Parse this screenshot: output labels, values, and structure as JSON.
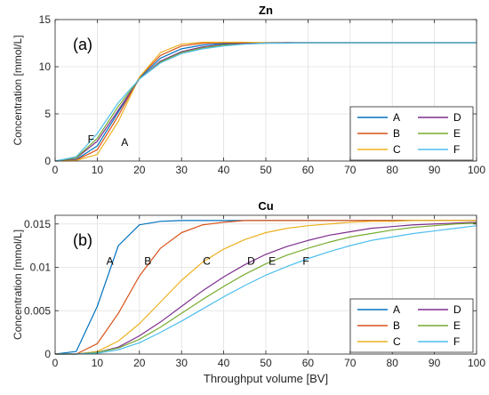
{
  "colors": {
    "A": "#0072BD",
    "B": "#D95319",
    "C": "#EDB120",
    "D": "#7E2F8E",
    "E": "#77AC30",
    "F": "#4DBEEE",
    "grid": "#e0e0e0",
    "axis": "#262626"
  },
  "chart_data": [
    {
      "type": "line",
      "title": "Zn",
      "panel_label": "(a)",
      "xlabel": "",
      "ylabel": "Concentration [mmol/L]",
      "xlim": [
        0,
        100
      ],
      "ylim": [
        0,
        15
      ],
      "xticks": [
        0,
        10,
        20,
        30,
        40,
        50,
        60,
        70,
        80,
        90,
        100
      ],
      "yticks": [
        0,
        5,
        10,
        15
      ],
      "ytick_labels": [
        "0",
        "5",
        "10",
        "15"
      ],
      "grid": true,
      "legend": {
        "placement": "bottom-right",
        "columns": 2
      },
      "annotations": [
        {
          "text": "F",
          "x": 8.5,
          "y": 2.3
        },
        {
          "text": "A",
          "x": 16.5,
          "y": 2.0
        }
      ],
      "x": [
        0,
        5,
        10,
        15,
        20,
        25,
        30,
        35,
        40,
        45,
        50,
        55,
        60,
        70,
        80,
        90,
        100
      ],
      "series": [
        {
          "name": "A",
          "values": [
            0,
            0.15,
            1.6,
            5.2,
            8.8,
            10.9,
            11.9,
            12.3,
            12.45,
            12.5,
            12.55,
            12.55,
            12.55,
            12.55,
            12.55,
            12.55,
            12.55
          ]
        },
        {
          "name": "B",
          "values": [
            0,
            0.1,
            1.2,
            4.8,
            8.9,
            11.2,
            12.2,
            12.5,
            12.55,
            12.55,
            12.55,
            12.55,
            12.55,
            12.55,
            12.55,
            12.55,
            12.55
          ]
        },
        {
          "name": "C",
          "values": [
            0,
            0.05,
            0.7,
            4.2,
            8.9,
            11.5,
            12.4,
            12.6,
            12.6,
            12.6,
            12.55,
            12.55,
            12.55,
            12.55,
            12.55,
            12.55,
            12.55
          ]
        },
        {
          "name": "D",
          "values": [
            0,
            0.3,
            2.1,
            5.4,
            8.7,
            10.6,
            11.6,
            12.1,
            12.35,
            12.45,
            12.5,
            12.55,
            12.55,
            12.55,
            12.55,
            12.55,
            12.55
          ]
        },
        {
          "name": "E",
          "values": [
            0,
            0.35,
            2.4,
            5.8,
            8.7,
            10.5,
            11.5,
            12.0,
            12.3,
            12.4,
            12.5,
            12.5,
            12.55,
            12.55,
            12.55,
            12.55,
            12.55
          ]
        },
        {
          "name": "F",
          "values": [
            0,
            0.45,
            2.9,
            6.2,
            8.7,
            10.4,
            11.4,
            11.9,
            12.2,
            12.4,
            12.5,
            12.5,
            12.55,
            12.55,
            12.55,
            12.55,
            12.55
          ]
        }
      ]
    },
    {
      "type": "line",
      "title": "Cu",
      "panel_label": "(b)",
      "xlabel": "Throughput volume [BV]",
      "ylabel": "Concentration [mmol/L]",
      "xlim": [
        0,
        100
      ],
      "ylim": [
        0,
        0.016
      ],
      "xticks": [
        0,
        10,
        20,
        30,
        40,
        50,
        60,
        70,
        80,
        90,
        100
      ],
      "yticks": [
        0,
        0.005,
        0.01,
        0.015
      ],
      "ytick_labels": [
        "0",
        "0.005",
        "0.01",
        "0.015"
      ],
      "grid": true,
      "legend": {
        "placement": "bottom-right",
        "columns": 2
      },
      "annotations": [
        {
          "text": "A",
          "x": 13,
          "y": 0.0107
        },
        {
          "text": "B",
          "x": 22,
          "y": 0.0107
        },
        {
          "text": "C",
          "x": 36,
          "y": 0.0107
        },
        {
          "text": "D",
          "x": 46.5,
          "y": 0.0107
        },
        {
          "text": "E",
          "x": 51.5,
          "y": 0.0107
        },
        {
          "text": "F",
          "x": 59.5,
          "y": 0.0107
        }
      ],
      "x": [
        0,
        5,
        10,
        15,
        20,
        25,
        30,
        35,
        40,
        45,
        50,
        55,
        60,
        65,
        70,
        75,
        80,
        85,
        90,
        95,
        100
      ],
      "series": [
        {
          "name": "A",
          "values": [
            0,
            0.0003,
            0.0055,
            0.0125,
            0.0149,
            0.0153,
            0.0154,
            0.0154,
            0.0154,
            0.0154,
            0.0154,
            0.0154,
            0.0154,
            0.0154,
            0.0154,
            0.0154,
            0.0154,
            0.0154,
            0.0154,
            0.0154,
            0.0154
          ]
        },
        {
          "name": "B",
          "values": [
            0,
            0.0,
            0.0012,
            0.0047,
            0.009,
            0.0122,
            0.014,
            0.0149,
            0.0152,
            0.0154,
            0.0154,
            0.0154,
            0.0154,
            0.0154,
            0.0154,
            0.0154,
            0.0154,
            0.0154,
            0.0154,
            0.0154,
            0.0154
          ]
        },
        {
          "name": "C",
          "values": [
            0,
            0.0,
            0.0003,
            0.0015,
            0.0035,
            0.006,
            0.0085,
            0.0106,
            0.0121,
            0.0132,
            0.014,
            0.0145,
            0.0148,
            0.015,
            0.0152,
            0.0153,
            0.0153,
            0.0154,
            0.0154,
            0.0154,
            0.0154
          ]
        },
        {
          "name": "D",
          "values": [
            0,
            0.0,
            0.0002,
            0.0008,
            0.0021,
            0.0037,
            0.0055,
            0.0073,
            0.0089,
            0.0103,
            0.0115,
            0.0124,
            0.0131,
            0.0137,
            0.0141,
            0.0145,
            0.0147,
            0.0149,
            0.015,
            0.0151,
            0.0152
          ]
        },
        {
          "name": "E",
          "values": [
            0,
            0.0,
            0.0002,
            0.0007,
            0.0017,
            0.0031,
            0.0047,
            0.0063,
            0.0078,
            0.0092,
            0.0104,
            0.0114,
            0.0122,
            0.0129,
            0.0135,
            0.0139,
            0.0143,
            0.0146,
            0.0148,
            0.015,
            0.0151
          ]
        },
        {
          "name": "F",
          "values": [
            0,
            0.0,
            0.0001,
            0.0005,
            0.0013,
            0.0025,
            0.0038,
            0.0052,
            0.0066,
            0.0079,
            0.0091,
            0.0101,
            0.011,
            0.0118,
            0.0125,
            0.0131,
            0.0135,
            0.0139,
            0.0142,
            0.0145,
            0.0148
          ]
        }
      ]
    }
  ]
}
